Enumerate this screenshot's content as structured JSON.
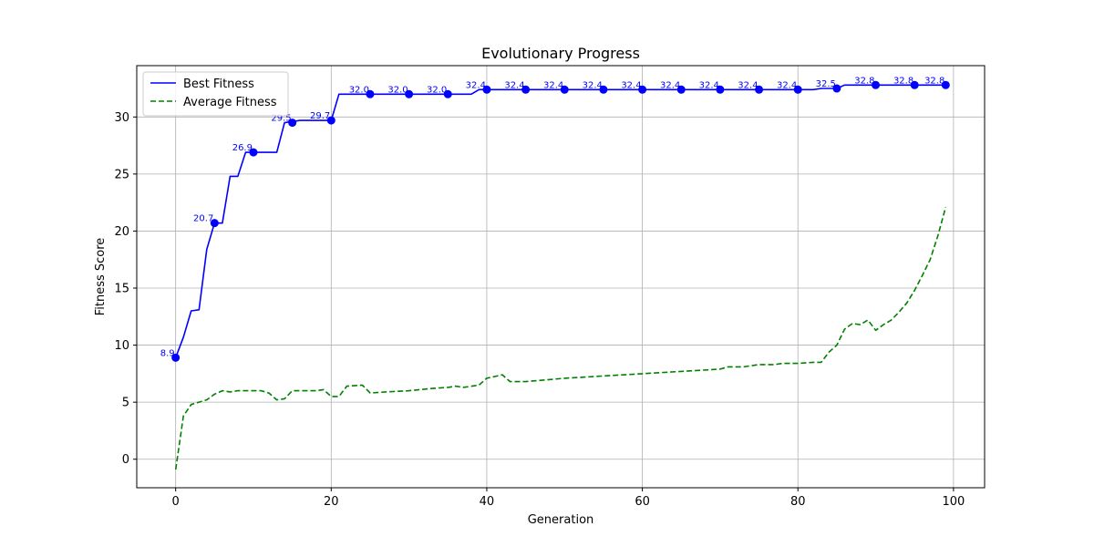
{
  "chart_data": {
    "type": "line",
    "title": "Evolutionary Progress",
    "xlabel": "Generation",
    "ylabel": "Fitness Score",
    "xlim": [
      -5,
      104
    ],
    "ylim": [
      -2.5,
      34.5
    ],
    "xticks": [
      0,
      20,
      40,
      60,
      80,
      100
    ],
    "yticks": [
      0,
      5,
      10,
      15,
      20,
      25,
      30
    ],
    "grid": true,
    "legend_position": "top-left",
    "series": [
      {
        "name": "Best Fitness",
        "color": "#0000ff",
        "style": "solid",
        "points": [
          [
            0,
            8.9
          ],
          [
            1,
            10.7
          ],
          [
            2,
            13.0
          ],
          [
            3,
            13.1
          ],
          [
            4,
            18.4
          ],
          [
            5,
            20.7
          ],
          [
            6,
            20.7
          ],
          [
            7,
            24.8
          ],
          [
            8,
            24.8
          ],
          [
            9,
            26.9
          ],
          [
            13,
            26.9
          ],
          [
            14,
            29.5
          ],
          [
            16,
            29.7
          ],
          [
            20,
            29.7
          ],
          [
            21,
            32.0
          ],
          [
            38,
            32.0
          ],
          [
            39,
            32.4
          ],
          [
            82,
            32.4
          ],
          [
            83,
            32.5
          ],
          [
            85,
            32.5
          ],
          [
            86,
            32.8
          ],
          [
            99,
            32.8
          ]
        ],
        "markers": [
          [
            0,
            8.9
          ],
          [
            5,
            20.7
          ],
          [
            10,
            26.9
          ],
          [
            15,
            29.5
          ],
          [
            20,
            29.7
          ],
          [
            25,
            32.0
          ],
          [
            30,
            32.0
          ],
          [
            35,
            32.0
          ],
          [
            40,
            32.4
          ],
          [
            45,
            32.4
          ],
          [
            50,
            32.4
          ],
          [
            55,
            32.4
          ],
          [
            60,
            32.4
          ],
          [
            65,
            32.4
          ],
          [
            70,
            32.4
          ],
          [
            75,
            32.4
          ],
          [
            80,
            32.4
          ],
          [
            85,
            32.5
          ],
          [
            90,
            32.8
          ],
          [
            95,
            32.8
          ],
          [
            99,
            32.8
          ]
        ],
        "marker_labels": [
          "8.9",
          "20.7",
          "26.9",
          "29.5",
          "29.7",
          "32.0",
          "32.0",
          "32.0",
          "32.4",
          "32.4",
          "32.4",
          "32.4",
          "32.4",
          "32.4",
          "32.4",
          "32.4",
          "32.4",
          "32.5",
          "32.8",
          "32.8",
          "32.8"
        ]
      },
      {
        "name": "Average Fitness",
        "color": "#008000",
        "style": "dashed",
        "points": [
          [
            0,
            -0.9
          ],
          [
            1,
            3.8
          ],
          [
            2,
            4.8
          ],
          [
            3,
            5.0
          ],
          [
            4,
            5.2
          ],
          [
            5,
            5.7
          ],
          [
            6,
            6.0
          ],
          [
            7,
            5.9
          ],
          [
            8,
            6.0
          ],
          [
            10,
            6.0
          ],
          [
            11,
            6.0
          ],
          [
            12,
            5.8
          ],
          [
            13,
            5.2
          ],
          [
            14,
            5.3
          ],
          [
            15,
            6.0
          ],
          [
            17,
            6.0
          ],
          [
            18,
            6.0
          ],
          [
            19,
            6.1
          ],
          [
            20,
            5.5
          ],
          [
            21,
            5.5
          ],
          [
            22,
            6.4
          ],
          [
            24,
            6.5
          ],
          [
            25,
            5.8
          ],
          [
            27,
            5.9
          ],
          [
            30,
            6.0
          ],
          [
            33,
            6.2
          ],
          [
            35,
            6.3
          ],
          [
            36,
            6.4
          ],
          [
            37,
            6.3
          ],
          [
            39,
            6.5
          ],
          [
            40,
            7.1
          ],
          [
            42,
            7.4
          ],
          [
            43,
            6.8
          ],
          [
            45,
            6.8
          ],
          [
            50,
            7.1
          ],
          [
            55,
            7.3
          ],
          [
            60,
            7.5
          ],
          [
            65,
            7.7
          ],
          [
            70,
            7.9
          ],
          [
            71,
            8.1
          ],
          [
            73,
            8.1
          ],
          [
            75,
            8.3
          ],
          [
            77,
            8.3
          ],
          [
            78,
            8.4
          ],
          [
            80,
            8.4
          ],
          [
            82,
            8.5
          ],
          [
            83,
            8.5
          ],
          [
            84,
            9.4
          ],
          [
            85,
            10.0
          ],
          [
            86,
            11.4
          ],
          [
            87,
            11.9
          ],
          [
            88,
            11.8
          ],
          [
            89,
            12.2
          ],
          [
            90,
            11.3
          ],
          [
            91,
            11.8
          ],
          [
            92,
            12.2
          ],
          [
            93,
            12.9
          ],
          [
            94,
            13.7
          ],
          [
            95,
            14.8
          ],
          [
            96,
            16.1
          ],
          [
            97,
            17.5
          ],
          [
            98,
            19.6
          ],
          [
            99,
            22.1
          ]
        ]
      }
    ]
  }
}
